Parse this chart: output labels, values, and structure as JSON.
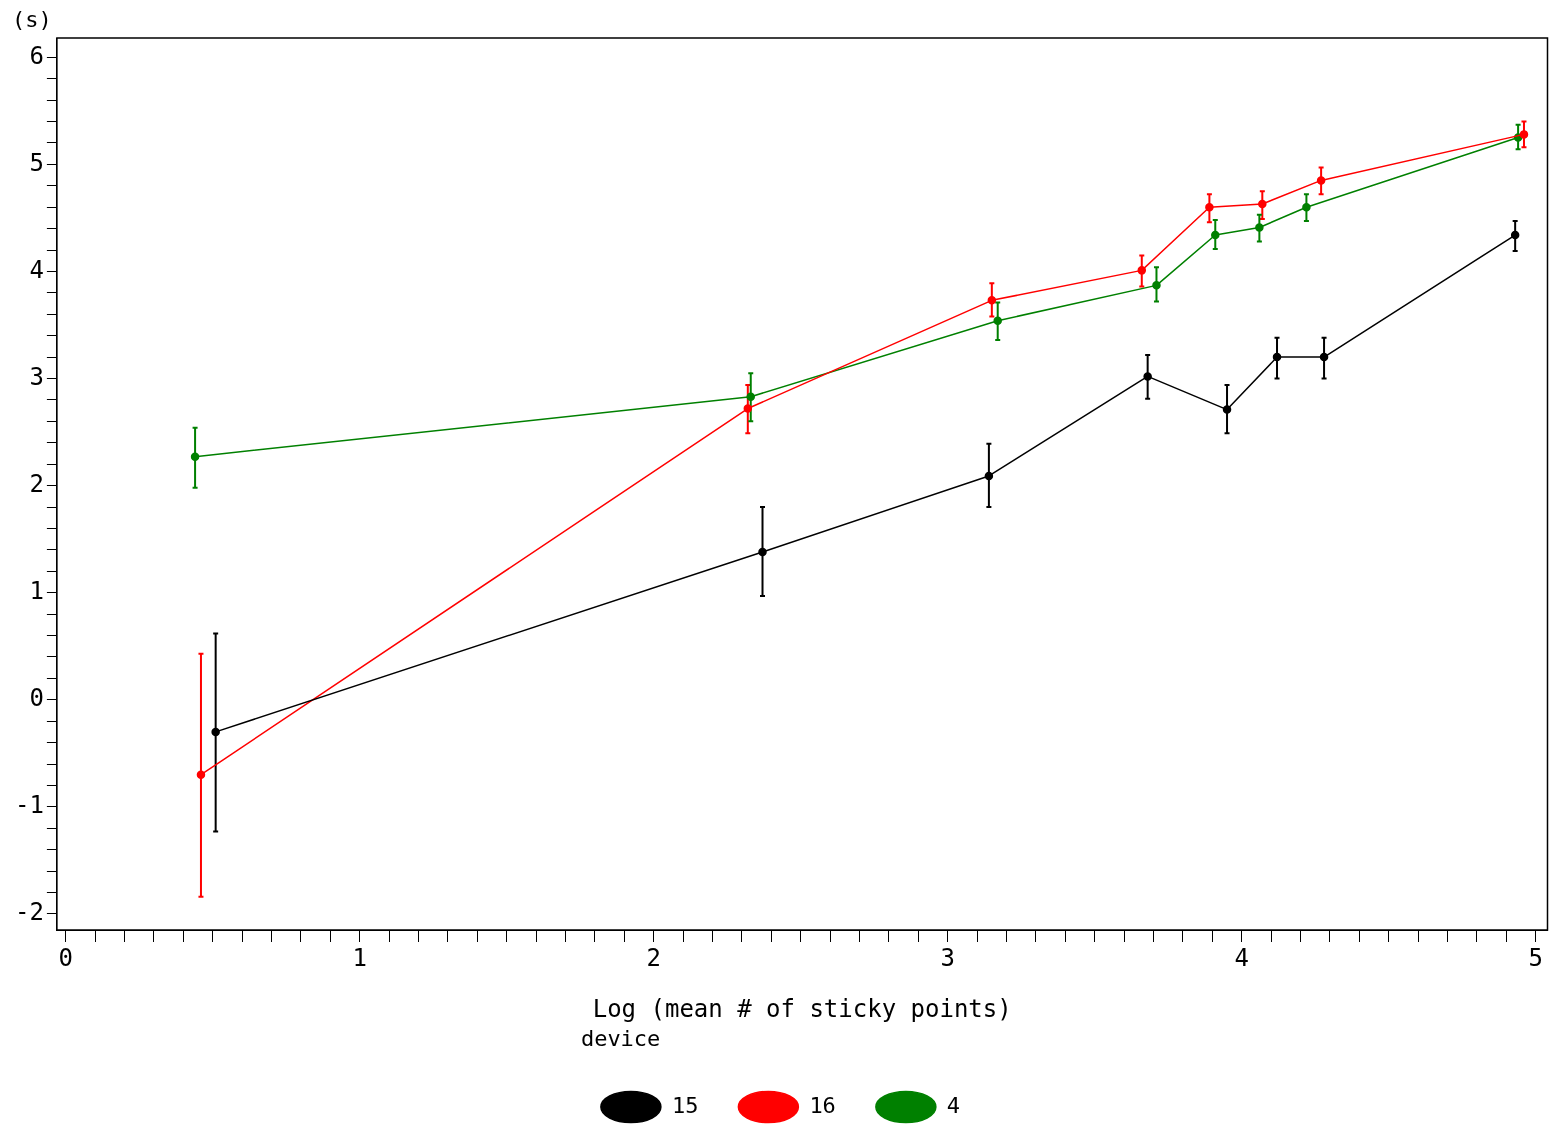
{
  "chart_data": {
    "type": "line",
    "xlabel": "Log (mean # of sticky points)",
    "ylabel": "(s)",
    "legend_title": "device",
    "legend": "bottom",
    "marker": "circle",
    "line_style": "solid",
    "grid": false,
    "xlim": [
      -0.03,
      5.04
    ],
    "ylim": [
      -2.15,
      6.18
    ],
    "xticks": [
      0,
      {
        "value": 0.1,
        "label": null
      },
      {
        "value": 0.2,
        "label": null
      },
      {
        "value": 0.3,
        "label": null
      },
      {
        "value": 0.4,
        "label": null
      },
      {
        "value": 0.5,
        "label": null
      },
      {
        "value": 0.6,
        "label": null
      },
      {
        "value": 0.7,
        "label": null
      },
      {
        "value": 0.8,
        "label": null
      },
      {
        "value": 0.9,
        "label": null
      },
      1,
      {
        "value": 1.1,
        "label": null
      },
      {
        "value": 1.2,
        "label": null
      },
      {
        "value": 1.3,
        "label": null
      },
      {
        "value": 1.4,
        "label": null
      },
      {
        "value": 1.5,
        "label": null
      },
      {
        "value": 1.6,
        "label": null
      },
      {
        "value": 1.7,
        "label": null
      },
      {
        "value": 1.8,
        "label": null
      },
      {
        "value": 1.9,
        "label": null
      },
      2,
      {
        "value": 2.1,
        "label": null
      },
      {
        "value": 2.2,
        "label": null
      },
      {
        "value": 2.3,
        "label": null
      },
      {
        "value": 2.4,
        "label": null
      },
      {
        "value": 2.5,
        "label": null
      },
      {
        "value": 2.6,
        "label": null
      },
      {
        "value": 2.7,
        "label": null
      },
      {
        "value": 2.8,
        "label": null
      },
      {
        "value": 2.9,
        "label": null
      },
      3,
      {
        "value": 3.1,
        "label": null
      },
      {
        "value": 3.2,
        "label": null
      },
      {
        "value": 3.3,
        "label": null
      },
      {
        "value": 3.4,
        "label": null
      },
      {
        "value": 3.5,
        "label": null
      },
      {
        "value": 3.6,
        "label": null
      },
      {
        "value": 3.7,
        "label": null
      },
      {
        "value": 3.8,
        "label": null
      },
      {
        "value": 3.9,
        "label": null
      },
      4,
      {
        "value": 4.1,
        "label": null
      },
      {
        "value": 4.2,
        "label": null
      },
      {
        "value": 4.3,
        "label": null
      },
      {
        "value": 4.4,
        "label": null
      },
      {
        "value": 4.5,
        "label": null
      },
      {
        "value": 4.6,
        "label": null
      },
      {
        "value": 4.7,
        "label": null
      },
      {
        "value": 4.8,
        "label": null
      },
      {
        "value": 4.9,
        "label": null
      },
      5
    ],
    "yticks": [
      -2,
      {
        "value": -1.8,
        "label": null
      },
      {
        "value": -1.6,
        "label": null
      },
      {
        "value": -1.4,
        "label": null
      },
      {
        "value": -1.2,
        "label": null
      },
      -1,
      {
        "value": -0.8,
        "label": null
      },
      {
        "value": -0.6,
        "label": null
      },
      {
        "value": -0.4,
        "label": null
      },
      {
        "value": -0.2,
        "label": null
      },
      0,
      {
        "value": 0.2,
        "label": null
      },
      {
        "value": 0.4,
        "label": null
      },
      {
        "value": 0.6,
        "label": null
      },
      {
        "value": 0.8,
        "label": null
      },
      1,
      {
        "value": 1.2,
        "label": null
      },
      {
        "value": 1.4,
        "label": null
      },
      {
        "value": 1.6,
        "label": null
      },
      {
        "value": 1.8,
        "label": null
      },
      2,
      {
        "value": 2.2,
        "label": null
      },
      {
        "value": 2.4,
        "label": null
      },
      {
        "value": 2.6,
        "label": null
      },
      {
        "value": 2.8,
        "label": null
      },
      3,
      {
        "value": 3.2,
        "label": null
      },
      {
        "value": 3.4,
        "label": null
      },
      {
        "value": 3.6,
        "label": null
      },
      {
        "value": 3.8,
        "label": null
      },
      4,
      {
        "value": 4.2,
        "label": null
      },
      {
        "value": 4.4,
        "label": null
      },
      {
        "value": 4.6,
        "label": null
      },
      {
        "value": 4.8,
        "label": null
      },
      5,
      {
        "value": 5.2,
        "label": null
      },
      {
        "value": 5.4,
        "label": null
      },
      {
        "value": 5.6,
        "label": null
      },
      {
        "value": 5.8,
        "label": null
      },
      6
    ],
    "series": [
      {
        "name": "15",
        "color": "#000000",
        "x": [
          0.51,
          2.37,
          3.14,
          3.68,
          3.95,
          4.12,
          4.28,
          4.93
        ],
        "values": [
          -0.3,
          1.38,
          2.09,
          3.02,
          2.71,
          3.2,
          3.2,
          4.34
        ],
        "errors": [
          [
            -1.23,
            0.62
          ],
          [
            0.97,
            1.8
          ],
          [
            1.8,
            2.39
          ],
          [
            2.81,
            3.22
          ],
          [
            2.49,
            2.94
          ],
          [
            3.0,
            3.38
          ],
          [
            3.0,
            3.38
          ],
          [
            4.19,
            4.47
          ]
        ]
      },
      {
        "name": "16",
        "color": "#ff0000",
        "x": [
          0.46,
          2.32,
          3.15,
          3.66,
          3.89,
          4.07,
          4.27,
          4.96
        ],
        "values": [
          -0.7,
          2.72,
          3.73,
          4.01,
          4.6,
          4.63,
          4.85,
          5.28
        ],
        "errors": [
          [
            -1.84,
            0.43
          ],
          [
            2.49,
            2.94
          ],
          [
            3.58,
            3.89
          ],
          [
            3.86,
            4.15
          ],
          [
            4.46,
            4.72
          ],
          [
            4.49,
            4.75
          ],
          [
            4.72,
            4.97
          ],
          [
            5.16,
            5.4
          ]
        ]
      },
      {
        "name": "4",
        "color": "#008000",
        "x": [
          0.44,
          2.33,
          3.17,
          3.71,
          3.91,
          4.06,
          4.22,
          4.94
        ],
        "values": [
          2.27,
          2.83,
          3.54,
          3.87,
          4.34,
          4.41,
          4.6,
          5.25
        ],
        "errors": [
          [
            1.98,
            2.54
          ],
          [
            2.6,
            3.05
          ],
          [
            3.36,
            3.71
          ],
          [
            3.72,
            4.04
          ],
          [
            4.21,
            4.48
          ],
          [
            4.28,
            4.53
          ],
          [
            4.47,
            4.72
          ],
          [
            5.14,
            5.37
          ]
        ]
      }
    ]
  }
}
